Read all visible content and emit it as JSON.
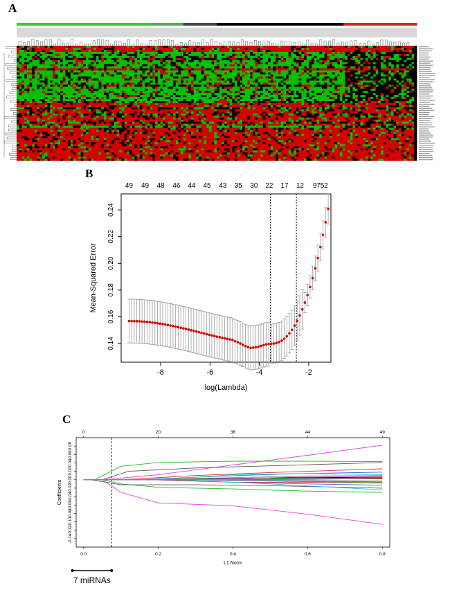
{
  "panels": {
    "a": {
      "letter": "A"
    },
    "b": {
      "letter": "B"
    },
    "c": {
      "letter": "C"
    }
  },
  "colors": {
    "heat_red": "#d40000",
    "heat_green": "#00c000",
    "heat_black": "#000000",
    "bar_green": "#33cc33",
    "bar_red": "#e02020",
    "mse_point": "#d40000",
    "err_bar": "#9a9a9a"
  },
  "chart_data": [
    {
      "id": "A",
      "type": "heatmap",
      "title": "",
      "rows": 56,
      "cols": 156,
      "row_pattern": [
        "R",
        "R",
        "R",
        "G",
        "G",
        "G",
        "M",
        "G",
        "G",
        "G",
        "G",
        "R",
        "G",
        "G",
        "G",
        "G",
        "G",
        "G",
        "G",
        "M",
        "G",
        "G",
        "G",
        "G",
        "G",
        "G",
        "G",
        "M",
        "R",
        "R",
        "M",
        "R",
        "R",
        "M",
        "R",
        "R",
        "R",
        "M",
        "R",
        "G",
        "R",
        "R",
        "R",
        "R",
        "R",
        "R",
        "R",
        "R",
        "R",
        "R",
        "R",
        "R",
        "R",
        "R",
        "R",
        "R"
      ],
      "color_scale": [
        "green",
        "black",
        "red"
      ]
    },
    {
      "id": "B",
      "type": "scatter",
      "title": "",
      "xlabel": "log(Lambda)",
      "ylabel": "Mean-Squared Error",
      "xlim": [
        -9.6,
        -1.1
      ],
      "ylim": [
        0.126,
        0.252
      ],
      "x_ticks": [
        -8,
        -6,
        -4,
        -2
      ],
      "y_ticks": [
        0.14,
        0.16,
        0.18,
        0.2,
        0.22,
        0.24
      ],
      "y_tick_labels": [
        "0.14",
        "0.16",
        "0.18",
        "0.20",
        "0.22",
        "0.24"
      ],
      "top_axis_labels": [
        49,
        49,
        48,
        46,
        44,
        45,
        43,
        35,
        30,
        22,
        17,
        12,
        9,
        7,
        5,
        2
      ],
      "top_axis_positions": [
        -9.28,
        -8.63,
        -8.0,
        -7.36,
        -6.74,
        -6.12,
        -5.48,
        -4.85,
        -4.22,
        -3.6,
        -2.98,
        -2.35,
        -1.75,
        -1.6,
        -1.45,
        -1.3
      ],
      "vlines": [
        -3.55,
        -2.5
      ],
      "n_points": 78,
      "x_start": -9.28,
      "x_step": 0.1048,
      "mse_start": 0.1568,
      "mse_end": 0.2408,
      "error_halfwidth": 0.0164,
      "minimum": {
        "x": -3.55,
        "y": 0.1398
      }
    },
    {
      "id": "C",
      "type": "line",
      "title": "",
      "xlabel": "L1 Norm",
      "ylabel": "Coefficients",
      "xlim": [
        -0.02,
        0.82
      ],
      "ylim": [
        -0.16,
        0.1
      ],
      "x_ticks": [
        0.0,
        0.2,
        0.4,
        0.6,
        0.8
      ],
      "x_tick_labels": [
        "0.0",
        "0.2",
        "0.4",
        "0.6",
        "0.8"
      ],
      "y_ticks": [
        -0.14,
        -0.12,
        -0.1,
        -0.08,
        -0.06,
        -0.04,
        -0.02,
        0.0,
        0.02,
        0.04,
        0.06,
        0.08
      ],
      "y_tick_labels": [
        "-0.14",
        "-0.12",
        "-0.10",
        "-0.08",
        "-0.06",
        "-0.04",
        "-0.02",
        "0.00",
        "0.02",
        "0.04",
        "0.06",
        "0.08"
      ],
      "top_axis_labels": [
        "0",
        "20",
        "36",
        "44",
        "49"
      ],
      "top_axis_positions": [
        0.0,
        0.2,
        0.4,
        0.6,
        0.8
      ],
      "vline": 0.075,
      "annotation": "7 miRNAs",
      "bracket": [
        -0.03,
        0.075
      ],
      "series": [
        {
          "name": "s1",
          "color": "#e040e0",
          "values": [
            [
              0.0,
              0.0
            ],
            [
              0.05,
              0.0
            ],
            [
              0.2,
              0.012
            ],
            [
              0.4,
              0.035
            ],
            [
              0.6,
              0.058
            ],
            [
              0.8,
              0.082
            ]
          ]
        },
        {
          "name": "s2",
          "color": "#e040e0",
          "values": [
            [
              0.0,
              0.0
            ],
            [
              0.05,
              0.0
            ],
            [
              0.1,
              -0.03
            ],
            [
              0.2,
              -0.055
            ],
            [
              0.4,
              -0.062
            ],
            [
              0.6,
              -0.082
            ],
            [
              0.8,
              -0.106
            ]
          ]
        },
        {
          "name": "s3",
          "color": "#22bb22",
          "values": [
            [
              0.0,
              0.0
            ],
            [
              0.03,
              0.0
            ],
            [
              0.1,
              0.032
            ],
            [
              0.2,
              0.041
            ],
            [
              0.4,
              0.044
            ],
            [
              0.6,
              0.044
            ],
            [
              0.8,
              0.043
            ]
          ]
        },
        {
          "name": "s4",
          "color": "#22bb22",
          "values": [
            [
              0.0,
              0.0
            ],
            [
              0.05,
              0.0
            ],
            [
              0.1,
              -0.01
            ],
            [
              0.2,
              -0.018
            ],
            [
              0.4,
              -0.022
            ],
            [
              0.6,
              -0.027
            ],
            [
              0.8,
              -0.03
            ]
          ]
        },
        {
          "name": "s5",
          "color": "#555555",
          "values": [
            [
              0.0,
              0.0
            ],
            [
              0.05,
              0.0
            ],
            [
              0.12,
              0.02
            ],
            [
              0.3,
              0.028
            ],
            [
              0.5,
              0.033
            ],
            [
              0.8,
              0.041
            ]
          ]
        },
        {
          "name": "s6",
          "color": "#555555",
          "values": [
            [
              0.0,
              0.0
            ],
            [
              0.02,
              0.0
            ],
            [
              0.1,
              -0.012
            ],
            [
              0.3,
              -0.012
            ],
            [
              0.5,
              -0.014
            ],
            [
              0.8,
              -0.02
            ]
          ]
        },
        {
          "name": "s7",
          "color": "#cc3333",
          "values": [
            [
              0.0,
              0.0
            ],
            [
              0.1,
              0.0
            ],
            [
              0.3,
              0.01
            ],
            [
              0.5,
              0.017
            ],
            [
              0.8,
              0.026
            ]
          ]
        },
        {
          "name": "s8",
          "color": "#3366dd",
          "values": [
            [
              0.0,
              0.0
            ],
            [
              0.15,
              0.0
            ],
            [
              0.35,
              0.008
            ],
            [
              0.55,
              0.014
            ],
            [
              0.8,
              0.018
            ]
          ]
        },
        {
          "name": "s9",
          "color": "#22cccc",
          "values": [
            [
              0.0,
              0.0
            ],
            [
              0.2,
              0.0
            ],
            [
              0.4,
              0.012
            ],
            [
              0.6,
              0.015
            ],
            [
              0.8,
              0.012
            ]
          ]
        },
        {
          "name": "s10",
          "color": "#888888",
          "values": [
            [
              0.0,
              0.0
            ],
            [
              0.18,
              0.0
            ],
            [
              0.4,
              0.005
            ],
            [
              0.6,
              0.009
            ],
            [
              0.8,
              0.01
            ]
          ]
        },
        {
          "name": "s11",
          "color": "#000000",
          "values": [
            [
              0.0,
              0.0
            ],
            [
              0.22,
              0.0
            ],
            [
              0.45,
              0.004
            ],
            [
              0.8,
              0.006
            ]
          ]
        },
        {
          "name": "s12",
          "color": "#e0a000",
          "values": [
            [
              0.0,
              0.0
            ],
            [
              0.25,
              0.0
            ],
            [
              0.5,
              0.003
            ],
            [
              0.8,
              0.004
            ]
          ]
        },
        {
          "name": "s13",
          "color": "#3366dd",
          "values": [
            [
              0.0,
              0.0
            ],
            [
              0.2,
              0.0
            ],
            [
              0.4,
              -0.006
            ],
            [
              0.6,
              -0.01
            ],
            [
              0.8,
              -0.013
            ]
          ]
        },
        {
          "name": "s14",
          "color": "#cc3333",
          "values": [
            [
              0.0,
              0.0
            ],
            [
              0.18,
              0.0
            ],
            [
              0.4,
              -0.006
            ],
            [
              0.6,
              -0.006
            ],
            [
              0.8,
              -0.008
            ]
          ]
        },
        {
          "name": "s15",
          "color": "#22cccc",
          "values": [
            [
              0.0,
              0.0
            ],
            [
              0.25,
              0.0
            ],
            [
              0.5,
              -0.01
            ],
            [
              0.8,
              -0.024
            ]
          ]
        },
        {
          "name": "s16",
          "color": "#22bb22",
          "values": [
            [
              0.0,
              0.0
            ],
            [
              0.3,
              0.0
            ],
            [
              0.55,
              -0.004
            ],
            [
              0.8,
              -0.006
            ]
          ]
        },
        {
          "name": "s17",
          "color": "#000000",
          "values": [
            [
              0.0,
              0.0
            ],
            [
              0.3,
              0.0
            ],
            [
              0.55,
              0.002
            ],
            [
              0.8,
              0.002
            ]
          ]
        },
        {
          "name": "s18",
          "color": "#e040e0",
          "values": [
            [
              0.0,
              0.0
            ],
            [
              0.3,
              0.0
            ],
            [
              0.55,
              0.006
            ],
            [
              0.8,
              0.008
            ]
          ]
        },
        {
          "name": "s19",
          "color": "#3366dd",
          "values": [
            [
              0.0,
              0.0
            ],
            [
              0.28,
              0.0
            ],
            [
              0.5,
              -0.003
            ],
            [
              0.8,
              -0.004
            ]
          ]
        },
        {
          "name": "s20",
          "color": "#888888",
          "values": [
            [
              0.0,
              0.0
            ],
            [
              0.35,
              0.0
            ],
            [
              0.6,
              -0.002
            ],
            [
              0.8,
              -0.003
            ]
          ]
        },
        {
          "name": "s21",
          "color": "#cc3333",
          "values": [
            [
              0.0,
              0.0
            ],
            [
              0.35,
              0.0
            ],
            [
              0.6,
              0.001
            ],
            [
              0.8,
              0.003
            ]
          ]
        },
        {
          "name": "s22",
          "color": "#22cccc",
          "values": [
            [
              0.0,
              0.0
            ],
            [
              0.32,
              0.0
            ],
            [
              0.6,
              0.003
            ],
            [
              0.8,
              0.005
            ]
          ]
        }
      ]
    }
  ]
}
